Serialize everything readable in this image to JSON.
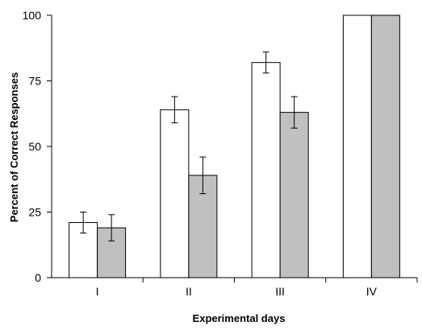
{
  "chart_data": {
    "type": "bar",
    "title": "",
    "xlabel": "Experimental days",
    "ylabel": "Percent of Correct Responses",
    "categories": [
      "I",
      "II",
      "III",
      "IV"
    ],
    "ylim": [
      0,
      100
    ],
    "yticks": [
      0,
      25,
      50,
      75,
      100
    ],
    "grid": false,
    "legend": "none",
    "series": [
      {
        "values": [
          21,
          64,
          82,
          100
        ],
        "errors": [
          4,
          5,
          4,
          null
        ],
        "color": "#ffffff"
      },
      {
        "values": [
          19,
          39,
          63,
          100
        ],
        "errors": [
          5,
          7,
          6,
          null
        ],
        "color": "#c0c0c0"
      }
    ]
  }
}
